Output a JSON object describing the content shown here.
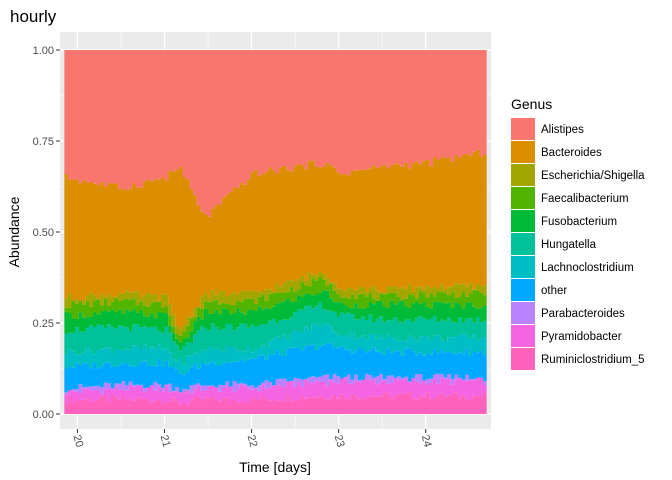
{
  "chart_data": {
    "type": "area",
    "title": "hourly",
    "xlabel": "Time [days]",
    "ylabel": "Abundance",
    "xlim": [
      19.8,
      24.75
    ],
    "ylim": [
      0,
      1
    ],
    "x_ticks": [
      20,
      21,
      22,
      23,
      24
    ],
    "x_tick_labels": [
      "20",
      "21",
      "22",
      "23",
      "24"
    ],
    "y_ticks": [
      0,
      0.25,
      0.5,
      0.75,
      1
    ],
    "y_tick_labels": [
      "0.00",
      "0.25",
      "0.50",
      "0.75",
      "1.00"
    ],
    "grid": true,
    "stacked": true,
    "legend_title": "Genus",
    "legend_position": "right",
    "x": [
      19.85,
      20.5,
      21.0,
      21.15,
      21.45,
      22.0,
      22.8,
      23.0,
      23.5,
      24.0,
      24.7
    ],
    "series_note": "cumulative upper bound of each stacked layer, listed bottom to top",
    "series": [
      {
        "name": "Ruminiclostridium_5",
        "color": "#FF62BC",
        "cumulative": [
          0.04,
          0.04,
          0.04,
          0.03,
          0.04,
          0.04,
          0.05,
          0.05,
          0.05,
          0.05,
          0.05
        ]
      },
      {
        "name": "Pyramidobacter",
        "color": "#F564E3",
        "cumulative": [
          0.06,
          0.07,
          0.07,
          0.06,
          0.07,
          0.07,
          0.09,
          0.09,
          0.09,
          0.09,
          0.09
        ]
      },
      {
        "name": "Parabacteroides",
        "color": "#B983FF",
        "cumulative": [
          0.07,
          0.08,
          0.08,
          0.07,
          0.08,
          0.08,
          0.1,
          0.1,
          0.1,
          0.1,
          0.1
        ]
      },
      {
        "name": "other",
        "color": "#00A9FF",
        "cumulative": [
          0.13,
          0.14,
          0.14,
          0.11,
          0.14,
          0.15,
          0.19,
          0.18,
          0.17,
          0.17,
          0.17
        ]
      },
      {
        "name": "Lachnoclostridium",
        "color": "#00BFC4",
        "cumulative": [
          0.17,
          0.18,
          0.18,
          0.14,
          0.18,
          0.18,
          0.25,
          0.22,
          0.21,
          0.21,
          0.21
        ]
      },
      {
        "name": "Hungatella",
        "color": "#00C19A",
        "cumulative": [
          0.23,
          0.24,
          0.23,
          0.17,
          0.24,
          0.24,
          0.3,
          0.27,
          0.26,
          0.26,
          0.26
        ]
      },
      {
        "name": "Fusobacterium",
        "color": "#00BA38",
        "cumulative": [
          0.27,
          0.28,
          0.27,
          0.19,
          0.28,
          0.28,
          0.34,
          0.3,
          0.3,
          0.3,
          0.3
        ]
      },
      {
        "name": "Faecalibacterium",
        "color": "#53B400",
        "cumulative": [
          0.3,
          0.31,
          0.3,
          0.21,
          0.31,
          0.31,
          0.37,
          0.33,
          0.32,
          0.33,
          0.33
        ]
      },
      {
        "name": "Escherichia/Shigella",
        "color": "#A58AFF",
        "display_color": "#A3A500",
        "cumulative": [
          0.32,
          0.33,
          0.32,
          0.23,
          0.33,
          0.33,
          0.39,
          0.35,
          0.34,
          0.35,
          0.35
        ]
      },
      {
        "name": "Bacteroides",
        "color": "#DB8E00",
        "cumulative": [
          0.65,
          0.62,
          0.65,
          0.68,
          0.54,
          0.66,
          0.69,
          0.66,
          0.68,
          0.69,
          0.72
        ]
      },
      {
        "name": "Alistipes",
        "color": "#F8766D",
        "cumulative": [
          1,
          1,
          1,
          1,
          1,
          1,
          1,
          1,
          1,
          1,
          1
        ]
      }
    ]
  }
}
